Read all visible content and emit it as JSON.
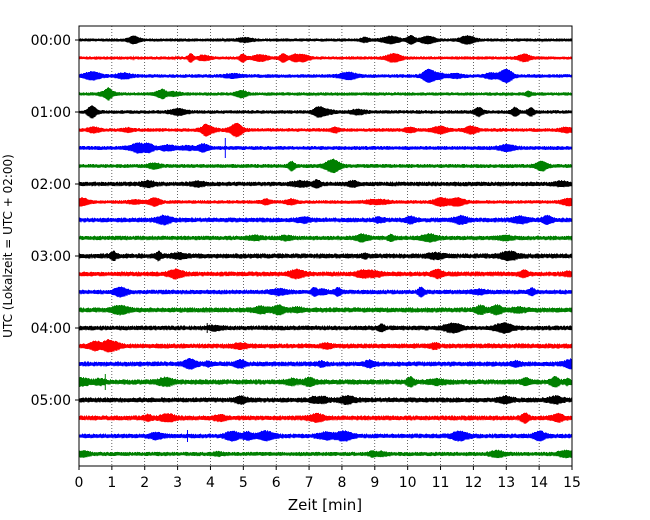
{
  "chart_data": {
    "type": "line",
    "title": "",
    "xlabel": "Zeit  [min]",
    "ylabel": "UTC (Lokalzeit = UTC + 02:00)",
    "xlim": [
      0,
      15
    ],
    "x_ticks": [
      "0",
      "1",
      "2",
      "3",
      "4",
      "5",
      "6",
      "7",
      "8",
      "9",
      "10",
      "11",
      "12",
      "13",
      "14",
      "15"
    ],
    "y_tick_labels": [
      "00:00",
      "01:00",
      "02:00",
      "03:00",
      "04:00",
      "05:00"
    ],
    "traces_per_hour": 4,
    "trace_minutes": 15,
    "trace_count": 24,
    "color_cycle": [
      "#000000",
      "#ff0000",
      "#0000ff",
      "#008000"
    ],
    "grid": "vertical dotted",
    "spikes": [
      {
        "trace": 6,
        "minute": 4.45,
        "amplitude": 1.0
      },
      {
        "trace": 19,
        "minute": 0.8,
        "amplitude": 0.8
      },
      {
        "trace": 22,
        "minute": 3.3,
        "amplitude": 0.6
      },
      {
        "trace": 16,
        "minute": 3.9,
        "amplitude": 0.5
      }
    ]
  }
}
